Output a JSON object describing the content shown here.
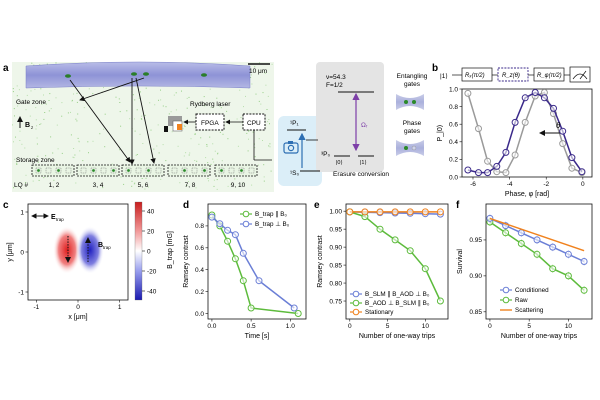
{
  "figure": {
    "panel_letters": [
      "a",
      "b",
      "c",
      "d",
      "e",
      "f"
    ]
  },
  "panel_a": {
    "scale_bar": "10 μm",
    "gate_zone": "Gate zone",
    "storage_zone": "Storage zone",
    "b_label": "B",
    "b_sub": "z",
    "rydberg": "Rydberg laser",
    "fpga": "FPGA",
    "cpu": "CPU",
    "lq_label": "LQ #",
    "lq_pairs": [
      "1, 2",
      "3, 4",
      "5, 6",
      "7, 8",
      "9, 10"
    ],
    "level_1p1": "¹P₁",
    "level_1s0": "¹S₀",
    "level_3p0": "³P₀",
    "nu": "ν=54.3",
    "F": "F=1/2",
    "omega": "Ωᵣ",
    "ket0": "|0⟩",
    "ket1": "|1⟩",
    "entangling": "Entangling\ngates",
    "phase_gates": "Phase\ngates",
    "erasure": "Erasure conversion"
  },
  "panel_b": {
    "seq": [
      "|1⟩",
      "Rₓ(π/2)",
      "R_z(θ)",
      "R_φ(π/2)"
    ],
    "theta": "θ"
  },
  "panel_c": {
    "e_trap": "E",
    "e_sub": "trap",
    "b_trap": "B",
    "b_sub": "trap",
    "colorbar_label": "B_trap [mG]"
  },
  "panel_d_legend": {
    "a": "B_trap ∥ B₀",
    "b": "B_trap ⊥ B₀"
  },
  "panel_e_legend": {
    "a": "B_SLM ∥ B_AOD ⊥ B₀",
    "b": "B_AOD ⊥ B_SLM ∥ B₀",
    "c": "Stationary"
  },
  "panel_f_legend": {
    "a": "Conditioned",
    "b": "Raw",
    "c": "Scattering"
  },
  "colors": {
    "navy": "#3b2a8a",
    "blue": "#6b7fd6",
    "green": "#5dbb3c",
    "gray": "#9a9a9a",
    "orange": "#f0821e"
  },
  "chart_data": [
    {
      "panel": "b",
      "type": "line",
      "xlabel": "Phase, φ [rad]",
      "ylabel": "P_|0⟩",
      "xlim": [
        -6.6,
        0.5
      ],
      "ylim": [
        0,
        1
      ],
      "xticks": [
        -6,
        -4,
        -2,
        0
      ],
      "yticks": [
        0.0,
        0.2,
        0.4,
        0.6,
        0.8,
        1.0
      ],
      "series": [
        {
          "color": "#9a9a9a",
          "x": [
            -6.28,
            -5.7,
            -5.2,
            -4.7,
            -4.2,
            -3.7,
            -3.15,
            -2.6,
            -2.1,
            -1.6,
            -1.1,
            -0.6,
            -0.05
          ],
          "y": [
            0.95,
            0.55,
            0.18,
            0.06,
            0.05,
            0.25,
            0.62,
            0.92,
            0.96,
            0.72,
            0.38,
            0.1,
            0.05
          ]
        },
        {
          "color": "#3b2a8a",
          "x": [
            -6.28,
            -5.7,
            -5.2,
            -4.7,
            -4.2,
            -3.7,
            -3.15,
            -2.6,
            -2.1,
            -1.6,
            -1.1,
            -0.6,
            -0.05
          ],
          "y": [
            0.08,
            0.05,
            0.05,
            0.12,
            0.28,
            0.62,
            0.9,
            0.96,
            0.9,
            0.78,
            0.52,
            0.22,
            0.06
          ]
        }
      ]
    },
    {
      "panel": "c",
      "type": "heatmap",
      "xlabel": "x [μm]",
      "ylabel": "y [μm]",
      "xticks": [
        -1,
        0,
        1
      ],
      "yticks": [
        -1,
        0,
        1
      ],
      "colorbar_ticks": [
        40,
        20,
        0,
        -20,
        -40
      ]
    },
    {
      "panel": "d",
      "type": "line",
      "xlabel": "Time [s]",
      "ylabel": "Ramsey contrast",
      "xlim": [
        -0.05,
        1.2
      ],
      "ylim": [
        -0.05,
        1.0
      ],
      "xticks": [
        0.0,
        0.5,
        1.0
      ],
      "yticks": [
        0.0,
        0.2,
        0.4,
        0.6,
        0.8
      ],
      "series": [
        {
          "name": "B_trap ∥ B₀",
          "color": "#5dbb3c",
          "x": [
            0.0,
            0.1,
            0.2,
            0.3,
            0.4,
            0.5,
            1.1
          ],
          "y": [
            0.9,
            0.8,
            0.66,
            0.5,
            0.3,
            0.05,
            0.0
          ]
        },
        {
          "name": "B_trap ⊥ B₀",
          "color": "#6b7fd6",
          "x": [
            0.0,
            0.1,
            0.2,
            0.3,
            0.4,
            0.6,
            1.05
          ],
          "y": [
            0.88,
            0.82,
            0.76,
            0.72,
            0.55,
            0.3,
            0.05
          ]
        }
      ]
    },
    {
      "panel": "e",
      "type": "line",
      "xlabel": "Number of one-way trips",
      "ylabel": "Ramsey contrast",
      "xlim": [
        -0.5,
        13
      ],
      "ylim": [
        0.7,
        1.02
      ],
      "xticks": [
        0,
        5,
        10
      ],
      "yticks": [
        0.75,
        0.8,
        0.85,
        0.9,
        0.95,
        1.0
      ],
      "series": [
        {
          "name": "B_SLM ∥ B_AOD ⊥ B₀",
          "color": "#6b7fd6",
          "x": [
            0,
            2,
            4,
            6,
            8,
            10,
            12
          ],
          "y": [
            0.998,
            0.997,
            0.996,
            0.995,
            0.994,
            0.993,
            0.992
          ]
        },
        {
          "name": "B_AOD ⊥ B_SLM ∥ B₀",
          "color": "#5dbb3c",
          "x": [
            0,
            2,
            4,
            6,
            8,
            10,
            12
          ],
          "y": [
            0.998,
            0.985,
            0.95,
            0.92,
            0.89,
            0.84,
            0.75
          ]
        },
        {
          "name": "Stationary",
          "color": "#f0821e",
          "x": [
            0,
            2,
            4,
            6,
            8,
            10,
            12
          ],
          "y": [
            0.998,
            0.998,
            0.998,
            0.998,
            0.998,
            0.998,
            0.998
          ]
        }
      ]
    },
    {
      "panel": "f",
      "type": "line",
      "xlabel": "Number of one-way trips",
      "ylabel": "Survival",
      "xlim": [
        -0.5,
        13
      ],
      "ylim": [
        0.84,
        1.0
      ],
      "xticks": [
        0,
        5,
        10
      ],
      "yticks": [
        0.85,
        0.9,
        0.95
      ],
      "series": [
        {
          "name": "Conditioned",
          "color": "#6b7fd6",
          "x": [
            0,
            2,
            4,
            6,
            8,
            10,
            12
          ],
          "y": [
            0.98,
            0.97,
            0.96,
            0.95,
            0.94,
            0.93,
            0.92
          ]
        },
        {
          "name": "Raw",
          "color": "#5dbb3c",
          "x": [
            0,
            2,
            4,
            6,
            8,
            10,
            12
          ],
          "y": [
            0.975,
            0.96,
            0.945,
            0.93,
            0.91,
            0.9,
            0.88
          ]
        },
        {
          "name": "Scattering",
          "color": "#f0821e",
          "x": [
            0,
            12
          ],
          "y": [
            0.98,
            0.935
          ]
        }
      ]
    }
  ]
}
